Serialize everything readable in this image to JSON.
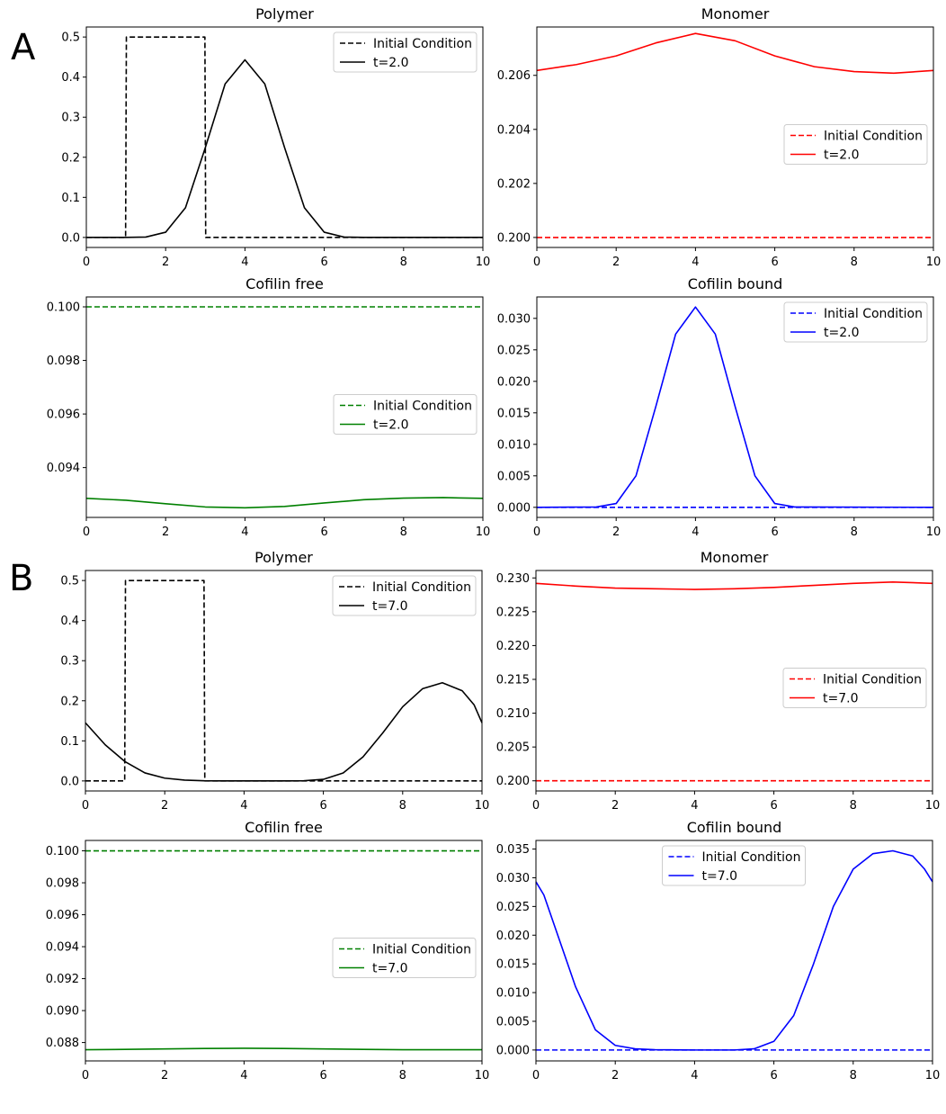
{
  "panel_labels": [
    "A",
    "B"
  ],
  "chart_data": [
    {
      "type": "line",
      "panel": "A",
      "title": "Polymer",
      "xlim": [
        0,
        10
      ],
      "ylim": [
        -0.025,
        0.525
      ],
      "xticks": [
        0,
        2,
        4,
        6,
        8,
        10
      ],
      "yticks": [
        0.0,
        0.1,
        0.2,
        0.3,
        0.4,
        0.5
      ],
      "tick_decimals": 1,
      "legend_position": "upper right",
      "series": [
        {
          "name": "Initial Condition",
          "color": "#000000",
          "dash": true,
          "x": [
            0,
            0.99,
            1.01,
            2.99,
            3.01,
            10
          ],
          "y": [
            0,
            0,
            0.5,
            0.5,
            0,
            0
          ]
        },
        {
          "name": "t=2.0",
          "color": "#000000",
          "dash": false,
          "x": [
            0,
            1.0,
            1.5,
            2.0,
            2.5,
            3.0,
            3.5,
            4.0,
            4.5,
            5.0,
            5.5,
            6.0,
            6.5,
            7.0,
            10
          ],
          "y": [
            0,
            0,
            0.001,
            0.013,
            0.074,
            0.224,
            0.383,
            0.443,
            0.383,
            0.224,
            0.074,
            0.013,
            0.001,
            0,
            0
          ]
        }
      ]
    },
    {
      "type": "line",
      "panel": "A",
      "title": "Monomer",
      "xlim": [
        0,
        10
      ],
      "ylim": [
        0.19963,
        0.20779
      ],
      "xticks": [
        0,
        2,
        4,
        6,
        8,
        10
      ],
      "yticks": [
        0.2,
        0.202,
        0.204,
        0.206
      ],
      "tick_decimals": 3,
      "legend_position": "center right",
      "series": [
        {
          "name": "Initial Condition",
          "color": "#ff0000",
          "dash": true,
          "x": [
            0,
            10
          ],
          "y": [
            0.2,
            0.2
          ]
        },
        {
          "name": "t=2.0",
          "color": "#ff0000",
          "dash": false,
          "x": [
            0,
            1,
            2,
            3,
            4,
            5,
            6,
            7,
            8,
            9,
            10
          ],
          "y": [
            0.20618,
            0.2064,
            0.20672,
            0.2072,
            0.20755,
            0.20728,
            0.20672,
            0.20632,
            0.20614,
            0.20608,
            0.20618
          ]
        }
      ]
    },
    {
      "type": "line",
      "panel": "A",
      "title": "Cofilin free",
      "xlim": [
        0,
        10
      ],
      "ylim": [
        0.09214,
        0.10037
      ],
      "xticks": [
        0,
        2,
        4,
        6,
        8,
        10
      ],
      "yticks": [
        0.094,
        0.096,
        0.098,
        0.1
      ],
      "tick_decimals": 3,
      "legend_position": "center right",
      "series": [
        {
          "name": "Initial Condition",
          "color": "#008000",
          "dash": true,
          "x": [
            0,
            10
          ],
          "y": [
            0.1,
            0.1
          ]
        },
        {
          "name": "t=2.0",
          "color": "#008000",
          "dash": false,
          "x": [
            0,
            1,
            2,
            3,
            4,
            5,
            6,
            7,
            8,
            9,
            10
          ],
          "y": [
            0.09285,
            0.09278,
            0.09265,
            0.09253,
            0.0925,
            0.09255,
            0.09268,
            0.0928,
            0.09286,
            0.09288,
            0.09285
          ]
        }
      ]
    },
    {
      "type": "line",
      "panel": "A",
      "title": "Cofilin bound",
      "xlim": [
        0,
        10
      ],
      "ylim": [
        -0.0016,
        0.0334
      ],
      "xticks": [
        0,
        2,
        4,
        6,
        8,
        10
      ],
      "yticks": [
        0.0,
        0.005,
        0.01,
        0.015,
        0.02,
        0.025,
        0.03
      ],
      "tick_decimals": 3,
      "legend_position": "upper right",
      "series": [
        {
          "name": "Initial Condition",
          "color": "#0000ff",
          "dash": true,
          "x": [
            0,
            10
          ],
          "y": [
            0,
            0
          ]
        },
        {
          "name": "t=2.0",
          "color": "#0000ff",
          "dash": false,
          "x": [
            0,
            1.5,
            2.0,
            2.5,
            3.0,
            3.5,
            4.0,
            4.5,
            5.0,
            5.5,
            6.0,
            6.5,
            10
          ],
          "y": [
            0,
            5e-05,
            0.0006,
            0.005,
            0.016,
            0.0275,
            0.0318,
            0.0275,
            0.016,
            0.005,
            0.0006,
            5e-05,
            0
          ]
        }
      ]
    },
    {
      "type": "line",
      "panel": "B",
      "title": "Polymer",
      "xlim": [
        0,
        10
      ],
      "ylim": [
        -0.025,
        0.525
      ],
      "xticks": [
        0,
        2,
        4,
        6,
        8,
        10
      ],
      "yticks": [
        0.0,
        0.1,
        0.2,
        0.3,
        0.4,
        0.5
      ],
      "tick_decimals": 1,
      "legend_position": "upper right",
      "series": [
        {
          "name": "Initial Condition",
          "color": "#000000",
          "dash": true,
          "x": [
            0,
            0.99,
            1.01,
            2.99,
            3.01,
            10
          ],
          "y": [
            0,
            0,
            0.5,
            0.5,
            0,
            0
          ]
        },
        {
          "name": "t=7.0",
          "color": "#000000",
          "dash": false,
          "x": [
            0,
            0.5,
            1.0,
            1.5,
            2.0,
            2.5,
            3.0,
            3.5,
            4.0,
            5.0,
            5.5,
            6.0,
            6.5,
            7.0,
            7.5,
            8.0,
            8.5,
            9.0,
            9.5,
            9.8,
            10.0
          ],
          "y": [
            0.145,
            0.09,
            0.048,
            0.02,
            0.007,
            0.002,
            0.0005,
            0.0001,
            0,
            0,
            0.0005,
            0.004,
            0.02,
            0.06,
            0.12,
            0.185,
            0.23,
            0.245,
            0.225,
            0.19,
            0.145
          ]
        }
      ]
    },
    {
      "type": "line",
      "panel": "B",
      "title": "Monomer",
      "xlim": [
        0,
        10
      ],
      "ylim": [
        0.1985,
        0.2311
      ],
      "xticks": [
        0,
        2,
        4,
        6,
        8,
        10
      ],
      "yticks": [
        0.2,
        0.205,
        0.21,
        0.215,
        0.22,
        0.225,
        0.23
      ],
      "tick_decimals": 3,
      "legend_position": "center right",
      "series": [
        {
          "name": "Initial Condition",
          "color": "#ff0000",
          "dash": true,
          "x": [
            0,
            10
          ],
          "y": [
            0.2,
            0.2
          ]
        },
        {
          "name": "t=7.0",
          "color": "#ff0000",
          "dash": false,
          "x": [
            0,
            1,
            2,
            3,
            4,
            5,
            6,
            7,
            8,
            9,
            10
          ],
          "y": [
            0.2292,
            0.2288,
            0.2285,
            0.2284,
            0.2283,
            0.2284,
            0.2286,
            0.2289,
            0.2292,
            0.2294,
            0.2292
          ]
        }
      ]
    },
    {
      "type": "line",
      "panel": "B",
      "title": "Cofilin free",
      "xlim": [
        0,
        10
      ],
      "ylim": [
        0.08685,
        0.10065
      ],
      "xticks": [
        0,
        2,
        4,
        6,
        8,
        10
      ],
      "yticks": [
        0.088,
        0.09,
        0.092,
        0.094,
        0.096,
        0.098,
        0.1
      ],
      "tick_decimals": 3,
      "legend_position": "center right",
      "series": [
        {
          "name": "Initial Condition",
          "color": "#008000",
          "dash": true,
          "x": [
            0,
            10
          ],
          "y": [
            0.1,
            0.1
          ]
        },
        {
          "name": "t=7.0",
          "color": "#008000",
          "dash": false,
          "x": [
            0,
            1,
            2,
            3,
            4,
            5,
            6,
            7,
            8,
            9,
            10
          ],
          "y": [
            0.08755,
            0.08757,
            0.0876,
            0.08763,
            0.08764,
            0.08763,
            0.0876,
            0.08757,
            0.08755,
            0.08755,
            0.08755
          ]
        }
      ]
    },
    {
      "type": "line",
      "panel": "B",
      "title": "Cofilin bound",
      "xlim": [
        0,
        10
      ],
      "ylim": [
        -0.0019,
        0.0365
      ],
      "xticks": [
        0,
        2,
        4,
        6,
        8,
        10
      ],
      "yticks": [
        0.0,
        0.005,
        0.01,
        0.015,
        0.02,
        0.025,
        0.03,
        0.035
      ],
      "tick_decimals": 3,
      "legend_position": "upper center",
      "series": [
        {
          "name": "Initial Condition",
          "color": "#0000ff",
          "dash": true,
          "x": [
            0,
            10
          ],
          "y": [
            0,
            0
          ]
        },
        {
          "name": "t=7.0",
          "color": "#0000ff",
          "dash": false,
          "x": [
            0,
            0.2,
            0.5,
            1.0,
            1.5,
            2.0,
            2.5,
            3.0,
            4.0,
            5.0,
            5.5,
            6.0,
            6.5,
            7.0,
            7.5,
            8.0,
            8.5,
            9.0,
            9.5,
            9.8,
            10.0
          ],
          "y": [
            0.0293,
            0.027,
            0.021,
            0.011,
            0.0035,
            0.0008,
            0.0002,
            5e-05,
            0,
            0,
            0.0002,
            0.0015,
            0.006,
            0.015,
            0.025,
            0.0315,
            0.0342,
            0.0347,
            0.0338,
            0.0315,
            0.0293
          ]
        }
      ]
    }
  ]
}
